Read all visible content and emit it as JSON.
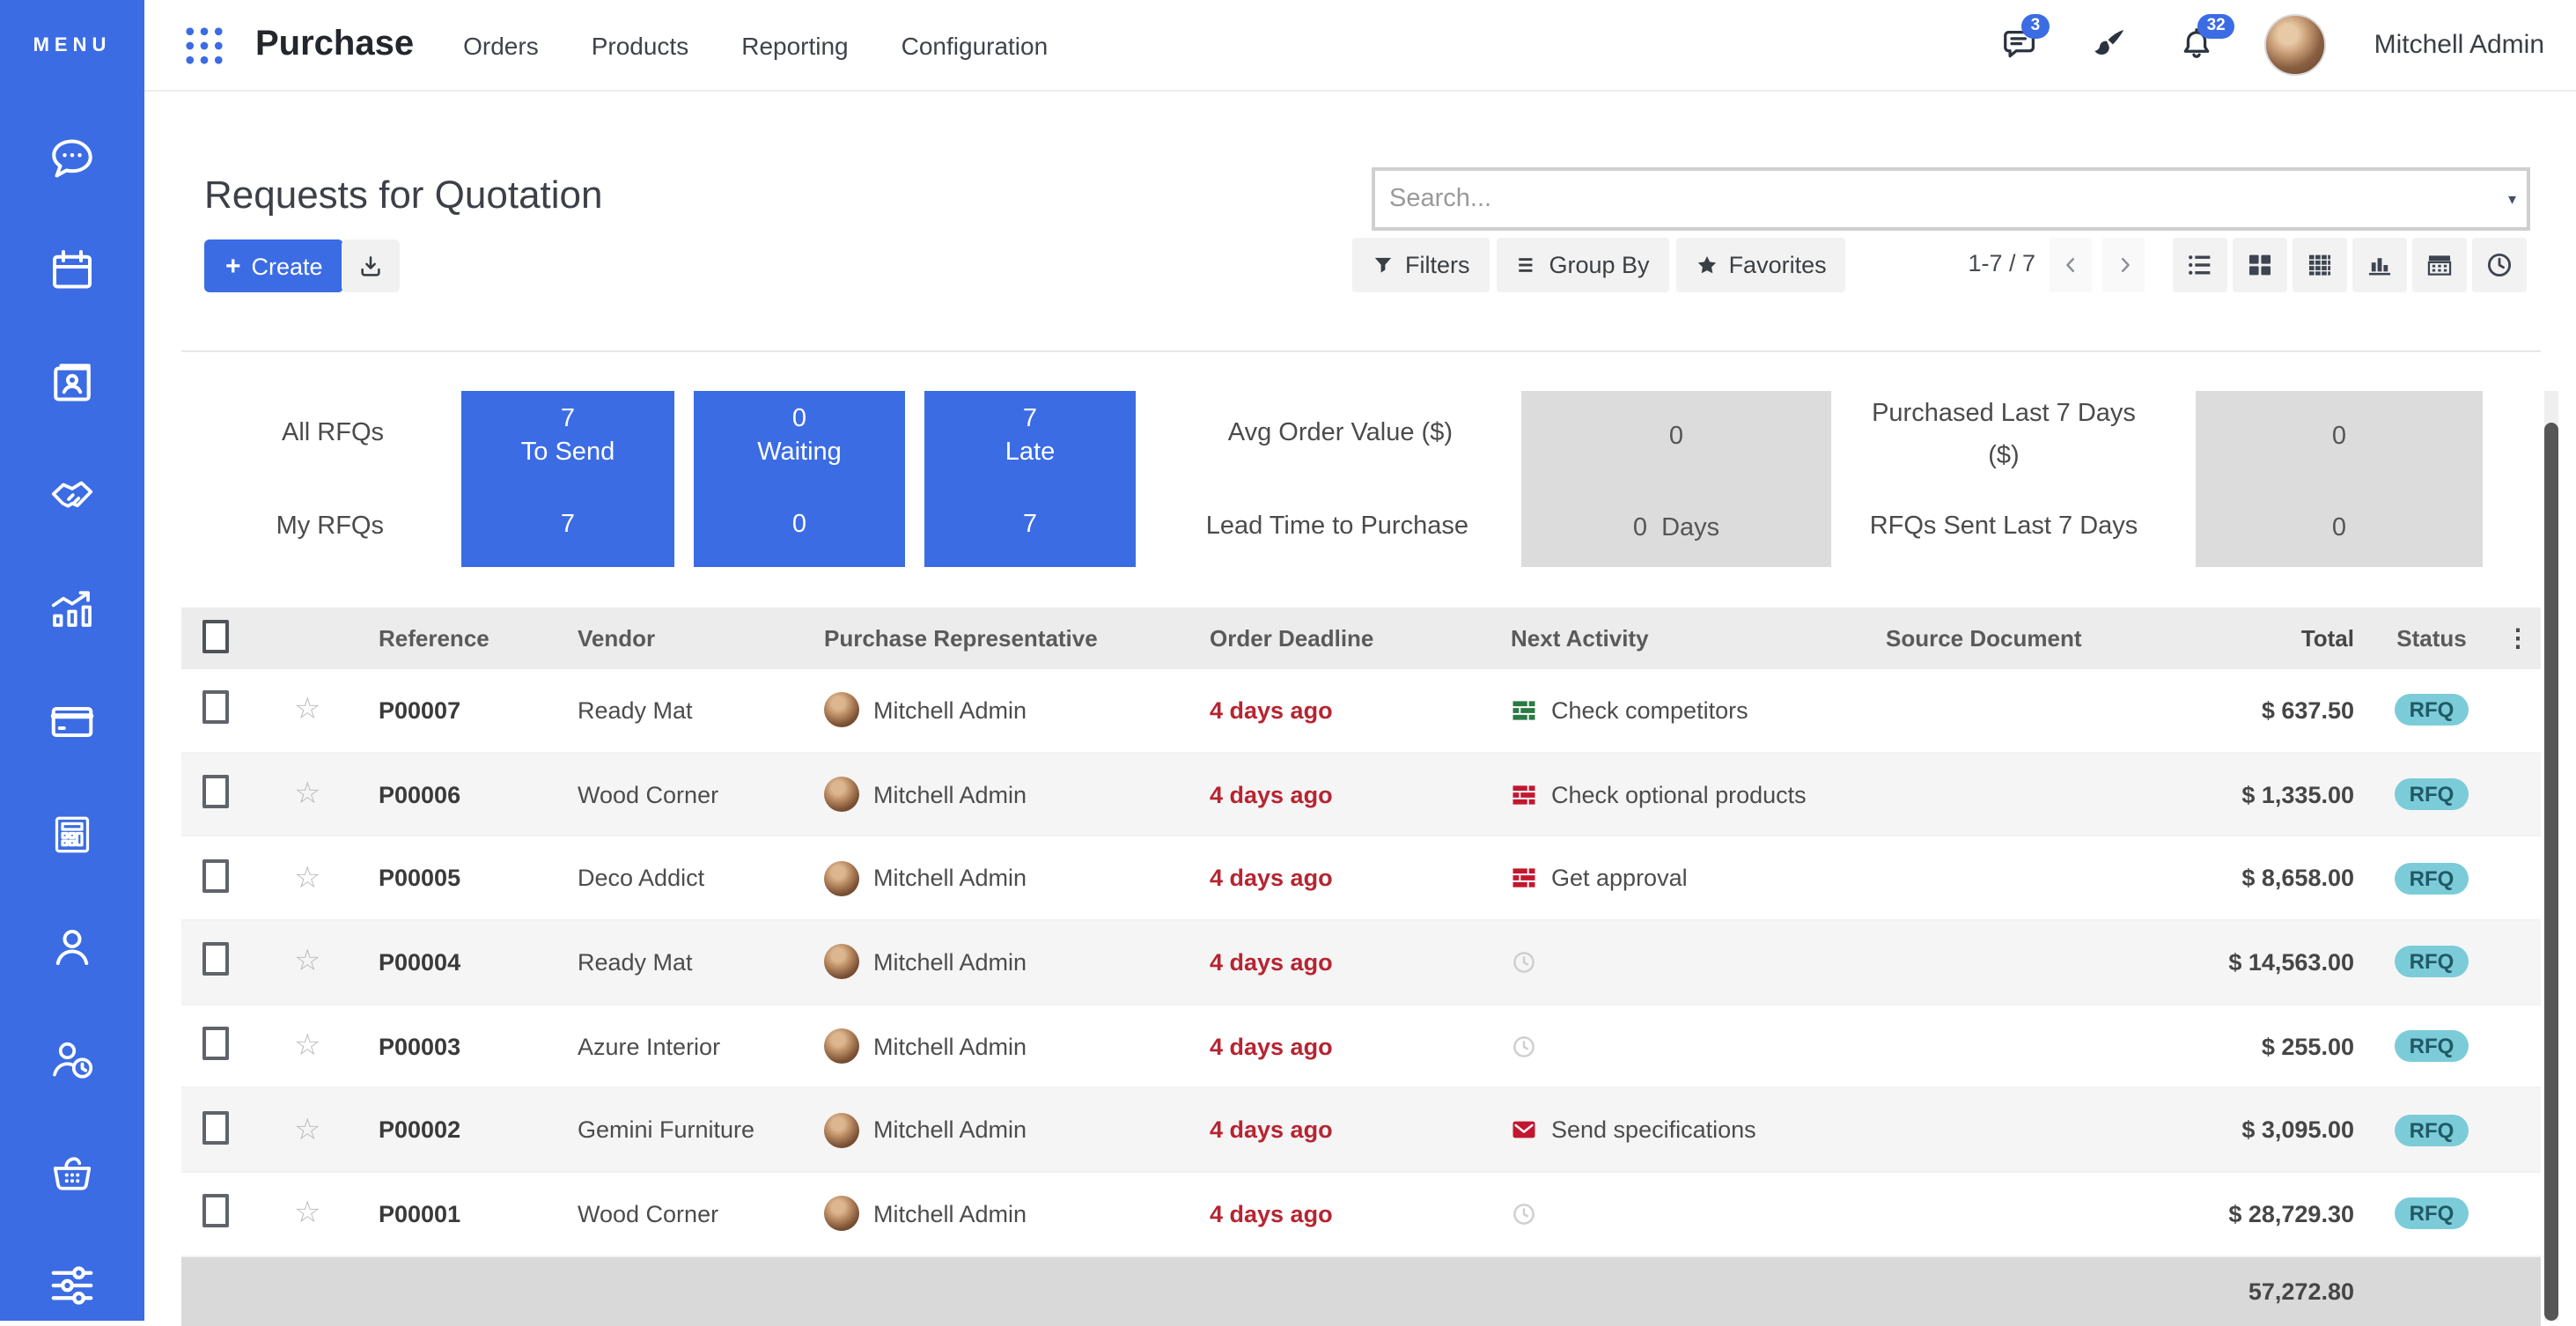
{
  "colors": {
    "accent_blue": "#3b6ce4",
    "deadline_red": "#b72431",
    "activity_green": "#2c7a43",
    "activity_red": "#c2182f",
    "badge_rfq_bg": "#7bccd8",
    "badge_rfq_text": "#215968",
    "table_header_bg": "#ececec",
    "footer_bg": "#d9d9d9"
  },
  "sidebar": {
    "menu_label": "MENU",
    "icons": [
      "discuss-icon",
      "calendar-icon",
      "contacts-icon",
      "crm-icon",
      "sales-icon",
      "invoicing-icon",
      "accounting-icon",
      "employees-icon",
      "attendance-icon",
      "purchase-icon",
      "settings-icon"
    ]
  },
  "topnav": {
    "app_name": "Purchase",
    "menus": [
      "Orders",
      "Products",
      "Reporting",
      "Configuration"
    ],
    "messages_badge": "3",
    "notifications_badge": "32",
    "user_name": "Mitchell Admin"
  },
  "page": {
    "title": "Requests for Quotation",
    "create_label": "Create",
    "plus": "+"
  },
  "search": {
    "placeholder": "Search..."
  },
  "controls": {
    "filters_label": "Filters",
    "group_by_label": "Group By",
    "favorites_label": "Favorites",
    "pager": "1-7 / 7",
    "view_icons": [
      "list-view-icon",
      "kanban-view-icon",
      "pivot-view-icon",
      "graph-view-icon",
      "calendar-view-icon",
      "activity-view-icon"
    ]
  },
  "dashboard": {
    "row_labels": [
      "All RFQs",
      "My RFQs"
    ],
    "blue_tiles": [
      {
        "top_value": "7",
        "label": "To Send",
        "bottom_value": "7"
      },
      {
        "top_value": "0",
        "label": "Waiting",
        "bottom_value": "0"
      },
      {
        "top_value": "7",
        "label": "Late",
        "bottom_value": "7"
      }
    ],
    "metric_labels_left": [
      "Avg Order Value ($)",
      "Lead Time to Purchase"
    ],
    "metric_tile_left": {
      "top_value": "0",
      "bottom_value": "0",
      "bottom_unit": "Days"
    },
    "metric_labels_right_line1": "Purchased Last 7 Days",
    "metric_labels_right_line2": "($)",
    "metric_labels_right_row2": "RFQs Sent Last 7 Days",
    "metric_tile_right": {
      "top_value": "0",
      "bottom_value": "0"
    }
  },
  "table": {
    "columns": [
      "Reference",
      "Vendor",
      "Purchase Representative",
      "Order Deadline",
      "Next Activity",
      "Source Document",
      "Total",
      "Status"
    ],
    "rows": [
      {
        "reference": "P00007",
        "vendor": "Ready Mat",
        "rep": "Mitchell Admin",
        "deadline": "4 days ago",
        "activity": {
          "icon": "tasks-icon",
          "color": "#2c7a43",
          "label": "Check competitors"
        },
        "source": "",
        "total": "$ 637.50",
        "status": "RFQ"
      },
      {
        "reference": "P00006",
        "vendor": "Wood Corner",
        "rep": "Mitchell Admin",
        "deadline": "4 days ago",
        "activity": {
          "icon": "tasks-icon",
          "color": "#c2182f",
          "label": "Check optional products"
        },
        "source": "",
        "total": "$ 1,335.00",
        "status": "RFQ"
      },
      {
        "reference": "P00005",
        "vendor": "Deco Addict",
        "rep": "Mitchell Admin",
        "deadline": "4 days ago",
        "activity": {
          "icon": "tasks-icon",
          "color": "#c2182f",
          "label": "Get approval"
        },
        "source": "",
        "total": "$ 8,658.00",
        "status": "RFQ"
      },
      {
        "reference": "P00004",
        "vendor": "Ready Mat",
        "rep": "Mitchell Admin",
        "deadline": "4 days ago",
        "activity": {
          "icon": "clock-activity-icon",
          "color": "#cfcfcf",
          "label": ""
        },
        "source": "",
        "total": "$ 14,563.00",
        "status": "RFQ"
      },
      {
        "reference": "P00003",
        "vendor": "Azure Interior",
        "rep": "Mitchell Admin",
        "deadline": "4 days ago",
        "activity": {
          "icon": "clock-activity-icon",
          "color": "#cfcfcf",
          "label": ""
        },
        "source": "",
        "total": "$ 255.00",
        "status": "RFQ"
      },
      {
        "reference": "P00002",
        "vendor": "Gemini Furniture",
        "rep": "Mitchell Admin",
        "deadline": "4 days ago",
        "activity": {
          "icon": "envelope-icon",
          "color": "#c2182f",
          "label": "Send specifications"
        },
        "source": "",
        "total": "$ 3,095.00",
        "status": "RFQ"
      },
      {
        "reference": "P00001",
        "vendor": "Wood Corner",
        "rep": "Mitchell Admin",
        "deadline": "4 days ago",
        "activity": {
          "icon": "clock-activity-icon",
          "color": "#cfcfcf",
          "label": ""
        },
        "source": "",
        "total": "$ 28,729.30",
        "status": "RFQ"
      }
    ],
    "footer_total": "57,272.80"
  }
}
